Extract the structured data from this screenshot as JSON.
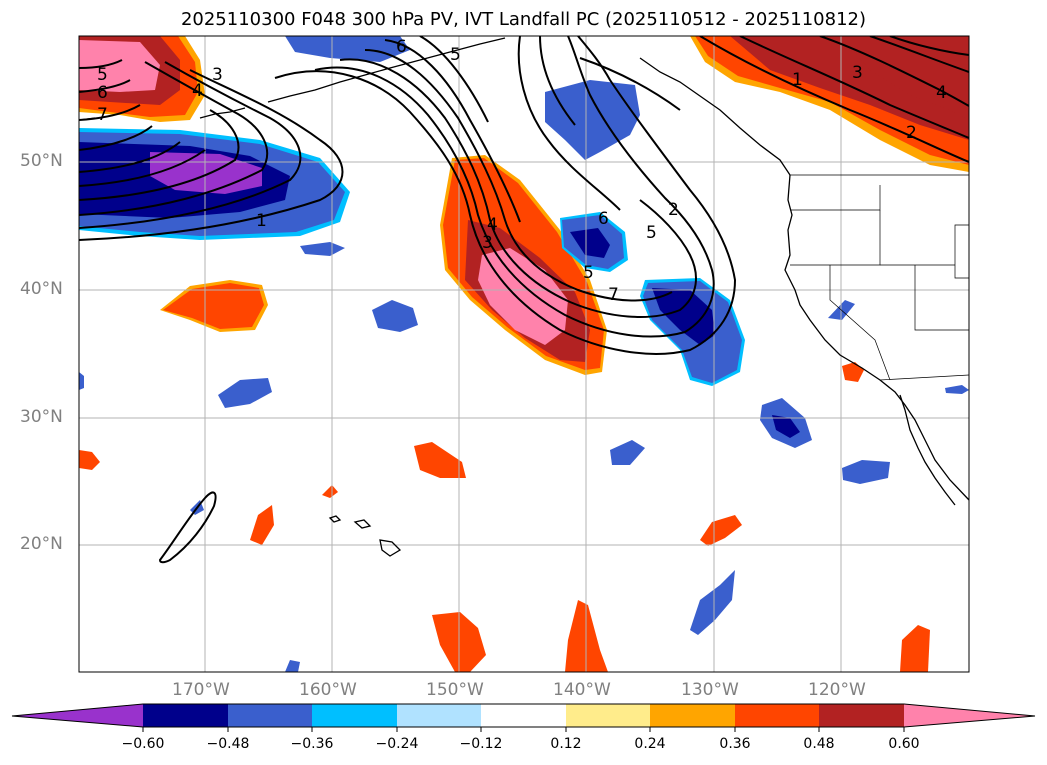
{
  "title": "2025110300 F048 300 hPa PV, IVT Landfall PC (2025110512 - 2025110812)",
  "axes": {
    "lat_labels": [
      "50°N",
      "40°N",
      "30°N",
      "20°N"
    ],
    "lon_labels": [
      "170°W",
      "160°W",
      "150°W",
      "140°W",
      "130°W",
      "120°W"
    ]
  },
  "colorbar": {
    "tick_labels": [
      "−0.60",
      "−0.48",
      "−0.36",
      "−0.24",
      "−0.12",
      "0.12",
      "0.24",
      "0.36",
      "0.48",
      "0.60"
    ],
    "colors": [
      "#9932cc",
      "#00008b",
      "#3a5fcd",
      "#00bfff",
      "#b0e2ff",
      "#ffffff",
      "#ffec8b",
      "#ffa500",
      "#ff4500",
      "#b22222",
      "#ff82ab"
    ]
  },
  "contour_labels": [
    "5",
    "6",
    "7",
    "3",
    "4",
    "1",
    "6",
    "5",
    "4",
    "3",
    "6",
    "5",
    "2",
    "1",
    "3",
    "4",
    "2",
    "7",
    "5"
  ]
}
